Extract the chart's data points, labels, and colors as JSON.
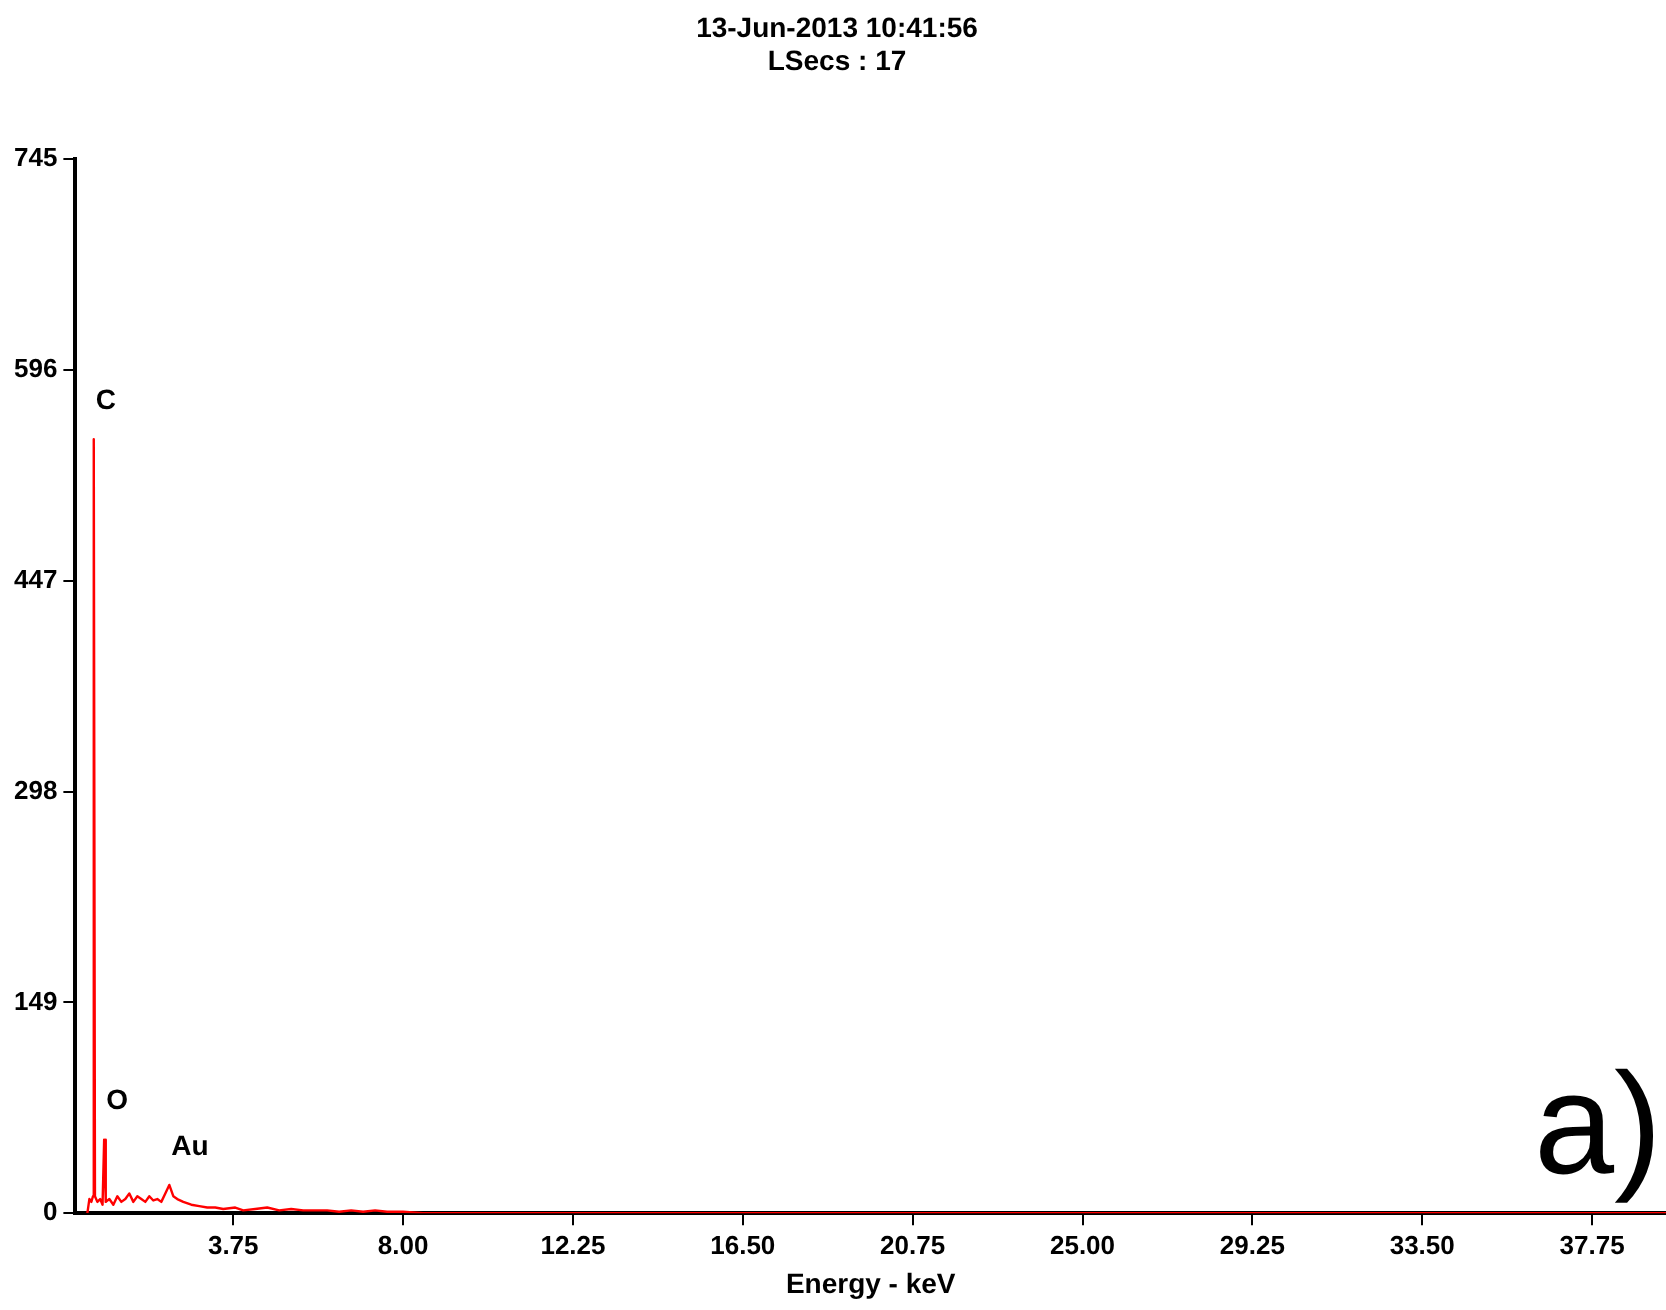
{
  "chart_data": {
    "type": "line",
    "title": "13-Jun-2013 10:41:56",
    "subtitle": "LSecs : 17",
    "xlabel": "Energy - keV",
    "x": [
      0.1,
      0.15,
      0.2,
      0.24,
      0.26,
      0.29,
      0.35,
      0.42,
      0.48,
      0.52,
      0.56,
      0.65,
      0.75,
      0.85,
      0.95,
      1.05,
      1.15,
      1.25,
      1.35,
      1.45,
      1.55,
      1.65,
      1.75,
      1.85,
      1.95,
      2.05,
      2.15,
      2.25,
      2.35,
      2.5,
      2.7,
      2.9,
      3.1,
      3.3,
      3.5,
      3.8,
      4.0,
      4.3,
      4.6,
      4.9,
      5.2,
      5.5,
      5.8,
      6.1,
      6.4,
      6.7,
      7.0,
      7.3,
      7.6,
      8.0,
      8.5,
      9.0,
      39.6
    ],
    "series": [
      {
        "color": "#ff0000",
        "values": [
          0,
          10,
          8,
          12,
          547,
          12,
          8,
          10,
          6,
          52,
          8,
          10,
          6,
          12,
          8,
          10,
          14,
          8,
          12,
          10,
          8,
          12,
          9,
          10,
          8,
          14,
          20,
          12,
          10,
          8,
          6,
          5,
          4,
          4,
          3,
          4,
          2,
          3,
          4,
          2,
          3,
          2,
          2,
          2,
          1,
          2,
          1,
          2,
          1,
          1,
          0,
          0,
          0
        ]
      }
    ],
    "xlim": [
      -0.2,
      39.6
    ],
    "ylim": [
      0,
      745
    ],
    "xticks": [
      {
        "value": 3.75,
        "label": "3.75"
      },
      {
        "value": 8,
        "label": "8.00"
      },
      {
        "value": 12.25,
        "label": "12.25"
      },
      {
        "value": 16.5,
        "label": "16.50"
      },
      {
        "value": 20.75,
        "label": "20.75"
      },
      {
        "value": 25,
        "label": "25.00"
      },
      {
        "value": 29.25,
        "label": "29.25"
      },
      {
        "value": 33.5,
        "label": "33.50"
      },
      {
        "value": 37.75,
        "label": "37.75"
      }
    ],
    "yticks": [
      0,
      149,
      298,
      447,
      596,
      745
    ],
    "grid": false,
    "legend": false,
    "marker": "none",
    "line_style": "solid",
    "annotations": [
      {
        "text": "C",
        "x": 0.26,
        "y": 547
      },
      {
        "text": "O",
        "x": 0.52,
        "y": 52
      },
      {
        "text": "Au",
        "x": 2.15,
        "y": 20
      },
      "a)"
    ]
  }
}
